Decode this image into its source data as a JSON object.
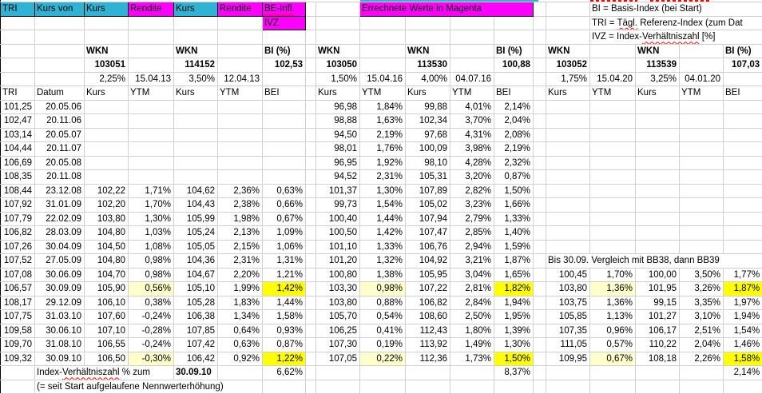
{
  "colors": {
    "cyan": "#2FB3D4",
    "magenta": "#FF00FF",
    "yellow": "#FFFF00",
    "pale_yellow": "#FFFFCC",
    "red": "#FF0000",
    "grid": "#D0D0D0"
  },
  "top": {
    "row1": {
      "tri": "TRI",
      "kurs_von": "Kurs von",
      "kurs1": "Kurs",
      "rendite1": "Rendite",
      "kurs2": "Kurs",
      "rendite2": "Rendite",
      "be_infl": "BE-Infl.",
      "errechnete": "Errechnete Werte in Magenta"
    },
    "ivz": "IVZ",
    "legend": {
      "line1": "BI = Basis-Index (bei Start)",
      "line2_pre": "TRI = ",
      "line2_wavy": "Tägl.",
      "line2_post": " Referenz-Index (zum Dat",
      "line3_pre": "IVZ = Index-",
      "line3_wavy": "Verhältniszahl",
      "line3_post": " [%]"
    }
  },
  "blocks": [
    {
      "wkn_label": "WKN",
      "wkn2_label": "WKN",
      "bi_label": "BI (%)",
      "wkn": "103051",
      "wkn2": "114152",
      "bi": "102,53",
      "coupon": "2,25%",
      "maturity": "15.04.13",
      "coupon2": "3,50%",
      "maturity2": "12.04.13"
    },
    {
      "wkn_label": "WKN",
      "wkn2_label": "WKN",
      "bi_label": "BI (%)",
      "wkn": "103050",
      "wkn2": "113530",
      "bi": "100,88",
      "coupon": "1,50%",
      "maturity": "15.04.16",
      "coupon2": "4,00%",
      "maturity2": "04.07.16"
    },
    {
      "wkn_label": "WKN",
      "wkn2_label": "WKN",
      "bi_label": "BI (%)",
      "wkn": "103052",
      "wkn2": "113539",
      "bi": "107,03",
      "coupon": "1,75%",
      "maturity": "15.04.20",
      "coupon2": "3,25%",
      "maturity2": "04.01.20"
    }
  ],
  "col_headers": {
    "tri": "TRI",
    "datum": "Datum",
    "kurs": "Kurs",
    "ytm": "YTM",
    "bei": "BEI"
  },
  "note_bb": "Bis 30.09. Vergleich mit BB38, dann BB39",
  "rows": [
    {
      "tri": "101,25",
      "datum": "20.05.06",
      "b1": [
        "",
        "",
        "",
        "",
        ""
      ],
      "b2": [
        "96,98",
        "1,84%",
        "99,88",
        "4,01%",
        "2,14%"
      ],
      "b3": [
        "",
        "",
        "",
        "",
        ""
      ]
    },
    {
      "tri": "102,47",
      "datum": "20.11.06",
      "b1": [
        "",
        "",
        "",
        "",
        ""
      ],
      "b2": [
        "98,88",
        "1,63%",
        "102,34",
        "3,70%",
        "2,04%"
      ],
      "b3": [
        "",
        "",
        "",
        "",
        ""
      ]
    },
    {
      "tri": "103,14",
      "datum": "20.05.07",
      "b1": [
        "",
        "",
        "",
        "",
        ""
      ],
      "b2": [
        "94,50",
        "2,19%",
        "97,68",
        "4,31%",
        "2,08%"
      ],
      "b3": [
        "",
        "",
        "",
        "",
        ""
      ]
    },
    {
      "tri": "104,44",
      "datum": "20.11.07",
      "b1": [
        "",
        "",
        "",
        "",
        ""
      ],
      "b2": [
        "98,01",
        "1,76%",
        "100,09",
        "3,98%",
        "2,19%"
      ],
      "b3": [
        "",
        "",
        "",
        "",
        ""
      ]
    },
    {
      "tri": "106,69",
      "datum": "20.05.08",
      "b1": [
        "",
        "",
        "",
        "",
        ""
      ],
      "b2": [
        "96,95",
        "1,92%",
        "98,10",
        "4,28%",
        "2,32%"
      ],
      "b3": [
        "",
        "",
        "",
        "",
        ""
      ]
    },
    {
      "tri": "108,35",
      "datum": "20.11.08",
      "b1": [
        "",
        "",
        "",
        "",
        ""
      ],
      "b2": [
        "94,52",
        "2,31%",
        "105,31",
        "3,20%",
        "0,87%"
      ],
      "b3": [
        "",
        "",
        "",
        "",
        ""
      ]
    },
    {
      "tri": "108,44",
      "datum": "23.12.08",
      "b1": [
        "102,22",
        "1,71%",
        "104,62",
        "2,36%",
        "0,63%"
      ],
      "b2": [
        "101,37",
        "1,30%",
        "107,89",
        "2,82%",
        "1,50%"
      ],
      "b3": [
        "",
        "",
        "",
        "",
        ""
      ]
    },
    {
      "tri": "107,92",
      "datum": "31.01.09",
      "b1": [
        "102,20",
        "1,70%",
        "104,43",
        "2,38%",
        "0,66%"
      ],
      "b2": [
        "99,73",
        "1,54%",
        "105,02",
        "3,23%",
        "1,66%"
      ],
      "b3": [
        "",
        "",
        "",
        "",
        ""
      ]
    },
    {
      "tri": "107,79",
      "datum": "22.02.09",
      "b1": [
        "103,80",
        "1,30%",
        "105,99",
        "1,98%",
        "0,67%"
      ],
      "b2": [
        "100,40",
        "1,44%",
        "107,94",
        "2,79%",
        "1,33%"
      ],
      "b3": [
        "",
        "",
        "",
        "",
        ""
      ]
    },
    {
      "tri": "106,82",
      "datum": "28.03.09",
      "b1": [
        "104,80",
        "1,03%",
        "105,24",
        "2,13%",
        "1,09%"
      ],
      "b2": [
        "100,50",
        "1,42%",
        "107,47",
        "2,85%",
        "1,40%"
      ],
      "b3": [
        "",
        "",
        "",
        "",
        ""
      ]
    },
    {
      "tri": "107,26",
      "datum": "30.04.09",
      "b1": [
        "104,50",
        "1,08%",
        "105,05",
        "2,15%",
        "1,06%"
      ],
      "b2": [
        "101,10",
        "1,33%",
        "106,76",
        "2,94%",
        "1,59%"
      ],
      "b3": [
        "",
        "",
        "",
        "",
        ""
      ]
    },
    {
      "tri": "107,52",
      "datum": "27.05.09",
      "b1": [
        "104,80",
        "0,98%",
        "104,36",
        "2,31%",
        "1,31%"
      ],
      "b2": [
        "101,20",
        "1,32%",
        "104,92",
        "3,21%",
        "1,87%"
      ],
      "b3_note": true
    },
    {
      "tri": "107,08",
      "datum": "30.06.09",
      "b1": [
        "104,70",
        "0,98%",
        "104,67",
        "2,20%",
        "1,21%"
      ],
      "b2": [
        "100,80",
        "1,38%",
        "105,95",
        "3,04%",
        "1,65%"
      ],
      "b3": [
        "100,45",
        "1,70%",
        "100,00",
        "3,50%",
        "1,77%"
      ]
    },
    {
      "tri": "106,57",
      "datum": "30.09.09",
      "hl": true,
      "b1": [
        "105,90",
        "0,56%",
        "105,10",
        "1,99%",
        "1,42%"
      ],
      "b2": [
        "103,30",
        "0,98%",
        "107,22",
        "2,81%",
        "1,82%"
      ],
      "b3": [
        "103,80",
        "1,36%",
        "101,95",
        "3,26%",
        "1,87%"
      ]
    },
    {
      "tri": "108,17",
      "datum": "29.12.09",
      "b1": [
        "106,10",
        "0,38%",
        "105,28",
        "1,83%",
        "1,44%"
      ],
      "b2": [
        "103,80",
        "0,88%",
        "106,82",
        "2,84%",
        "1,94%"
      ],
      "b3": [
        "103,75",
        "1,36%",
        "99,15",
        "3,35%",
        "1,97%"
      ]
    },
    {
      "tri": "107,75",
      "datum": "31.03.10",
      "b1": [
        "107,60",
        "-0,24%",
        "106,38",
        "1,34%",
        "1,58%"
      ],
      "b2": [
        "105,70",
        "0,54%",
        "108,60",
        "2,50%",
        "1,95%"
      ],
      "b3": [
        "105,85",
        "1,13%",
        "101,27",
        "3,10%",
        "1,94%"
      ]
    },
    {
      "tri": "109,58",
      "datum": "30.06.10",
      "b1": [
        "107,10",
        "-0,28%",
        "107,85",
        "0,64%",
        "0,93%"
      ],
      "b2": [
        "106,25",
        "0,41%",
        "112,43",
        "1,80%",
        "1,39%"
      ],
      "b3": [
        "107,35",
        "0,96%",
        "106,17",
        "2,51%",
        "1,54%"
      ]
    },
    {
      "tri": "109,70",
      "datum": "31.08.10",
      "b1": [
        "106,55",
        "-0,24%",
        "107,42",
        "0,63%",
        "0,87%"
      ],
      "b2": [
        "107,30",
        "0,19%",
        "113,92",
        "1,49%",
        "1,30%"
      ],
      "b3": [
        "111,05",
        "0,57%",
        "110,22",
        "2,04%",
        "1,46%"
      ]
    },
    {
      "tri": "109,32",
      "datum": "30.09.10",
      "hl": true,
      "b1": [
        "106,50",
        "-0,30%",
        "106,42",
        "0,92%",
        "1,22%"
      ],
      "b2": [
        "107,05",
        "0,22%",
        "112,36",
        "1,73%",
        "1,50%"
      ],
      "b3": [
        "109,95",
        "0,67%",
        "108,18",
        "2,26%",
        "1,58%"
      ]
    }
  ],
  "footer": {
    "label_pre": "Index-",
    "label_wavy": "Verhältniszahl",
    "label_post": " % zum",
    "date": "30.09.10",
    "ivz_left": "6,62%",
    "ivz_mid": "8,37%",
    "ivz_right": "2,14%",
    "note": "(= seit Start aufgelaufene Nennwerterhöhung)"
  }
}
